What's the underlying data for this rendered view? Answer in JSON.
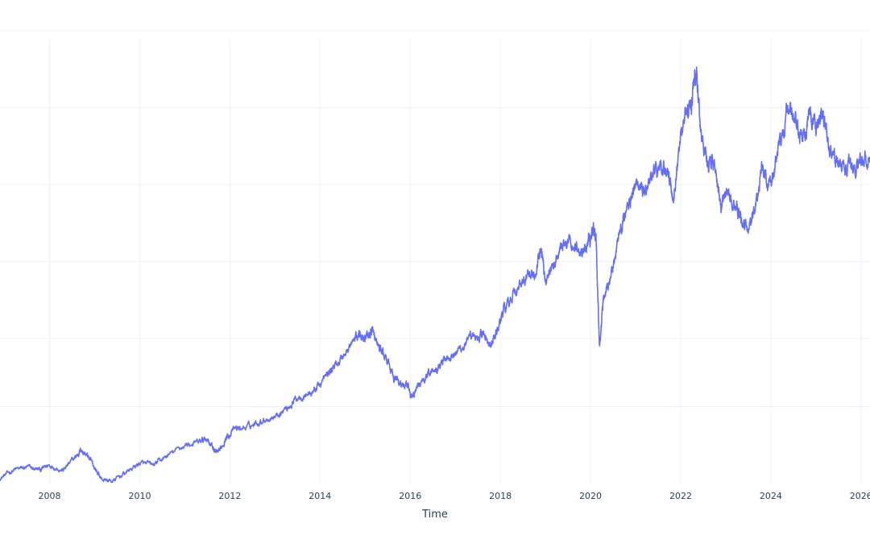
{
  "chart_data": {
    "type": "line",
    "title": "",
    "xlabel": "Time",
    "ylabel": "",
    "x_tick_labels": [
      "2008",
      "2010",
      "2012",
      "2014",
      "2016",
      "2018",
      "2020",
      "2022",
      "2024",
      "2026"
    ],
    "x_tick_years": [
      2008,
      2010,
      2012,
      2014,
      2016,
      2018,
      2020,
      2022,
      2024,
      2026
    ],
    "xlim": [
      2006.9,
      2026.2
    ],
    "ylim": [
      0,
      100
    ],
    "y_gridlines": [
      17,
      32,
      49,
      66,
      83,
      100
    ],
    "grid": true,
    "series": [
      {
        "color": "#636efa",
        "x": [
          2006.9,
          2007.2,
          2007.5,
          2007.8,
          2008.0,
          2008.3,
          2008.55,
          2008.7,
          2008.85,
          2009.0,
          2009.15,
          2009.4,
          2009.7,
          2010.0,
          2010.3,
          2010.6,
          2011.0,
          2011.3,
          2011.5,
          2011.65,
          2011.75,
          2011.9,
          2012.1,
          2012.4,
          2012.7,
          2013.0,
          2013.3,
          2013.55,
          2013.8,
          2014.0,
          2014.25,
          2014.5,
          2014.75,
          2014.9,
          2015.0,
          2015.15,
          2015.3,
          2015.45,
          2015.6,
          2015.75,
          2015.9,
          2016.05,
          2016.2,
          2016.4,
          2016.6,
          2016.8,
          2017.0,
          2017.2,
          2017.4,
          2017.6,
          2017.8,
          2017.95,
          2018.05,
          2018.2,
          2018.4,
          2018.6,
          2018.8,
          2018.9,
          2019.0,
          2019.2,
          2019.4,
          2019.6,
          2019.8,
          2019.95,
          2020.05,
          2020.12,
          2020.2,
          2020.3,
          2020.5,
          2020.7,
          2020.85,
          2021.0,
          2021.2,
          2021.4,
          2021.55,
          2021.7,
          2021.85,
          2022.0,
          2022.15,
          2022.25,
          2022.35,
          2022.45,
          2022.6,
          2022.75,
          2022.9,
          2023.05,
          2023.2,
          2023.35,
          2023.5,
          2023.65,
          2023.8,
          2023.95,
          2024.1,
          2024.25,
          2024.4,
          2024.55,
          2024.7,
          2024.85,
          2025.0,
          2025.15,
          2025.3,
          2025.45,
          2025.6,
          2025.8,
          2026.0,
          2026.2
        ],
        "y": [
          1.2,
          3.0,
          3.5,
          3.0,
          4.2,
          3.0,
          5.5,
          7.5,
          6.0,
          3.5,
          1.0,
          0.5,
          2.5,
          4.5,
          4.0,
          6.0,
          8.5,
          9.0,
          10.0,
          7.5,
          6.5,
          10.0,
          12.0,
          12.5,
          14.0,
          15.0,
          17.0,
          19.5,
          20.0,
          22.0,
          25.0,
          28.0,
          31.5,
          33.5,
          32.0,
          34.0,
          30.0,
          28.0,
          24.0,
          22.5,
          21.5,
          19.0,
          22.0,
          24.5,
          26.0,
          28.0,
          29.0,
          30.5,
          32.0,
          33.0,
          30.5,
          34.0,
          38.0,
          41.0,
          43.0,
          45.5,
          47.0,
          52.0,
          45.0,
          48.5,
          52.5,
          53.0,
          51.0,
          54.0,
          56.0,
          55.0,
          30.0,
          43.0,
          47.5,
          57.5,
          62.0,
          66.0,
          64.0,
          69.0,
          70.0,
          69.0,
          63.0,
          78.0,
          82.0,
          85.0,
          91.0,
          77.0,
          72.0,
          71.0,
          60.0,
          65.0,
          61.0,
          58.0,
          56.0,
          61.0,
          70.0,
          65.0,
          70.0,
          78.0,
          83.0,
          79.0,
          76.0,
          82.0,
          78.0,
          82.5,
          73.0,
          71.0,
          70.0,
          69.0,
          71.5,
          72.0
        ]
      }
    ]
  }
}
